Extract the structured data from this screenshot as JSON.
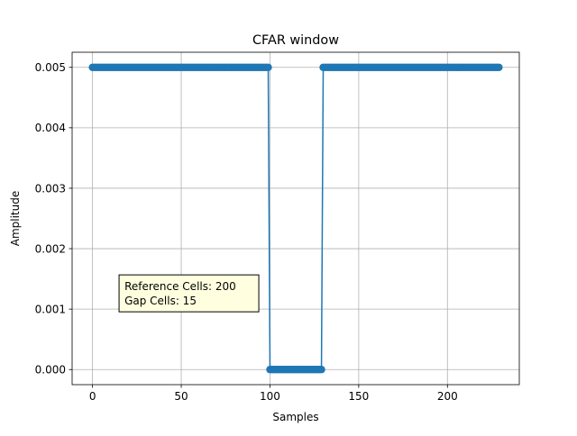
{
  "chart_data": {
    "type": "line",
    "title": "CFAR window",
    "xlabel": "Samples",
    "ylabel": "Amplitude",
    "xlim": [
      -11.5,
      240.5
    ],
    "ylim": [
      -0.00025,
      0.00525
    ],
    "xticks": [
      0,
      50,
      100,
      150,
      200
    ],
    "xtick_labels": [
      "0",
      "50",
      "100",
      "150",
      "200"
    ],
    "yticks": [
      0.0,
      0.001,
      0.002,
      0.003,
      0.004,
      0.005
    ],
    "ytick_labels": [
      "0.000",
      "0.001",
      "0.002",
      "0.003",
      "0.004",
      "0.005"
    ],
    "grid": true,
    "marker": "circle",
    "segments": [
      {
        "x_start": 0,
        "x_end": 99,
        "value": 0.005
      },
      {
        "x_start": 100,
        "x_end": 129,
        "value": 0.0
      },
      {
        "x_start": 130,
        "x_end": 229,
        "value": 0.005
      }
    ],
    "annotation": {
      "lines": [
        "Reference Cells: 200",
        "Gap Cells: 15"
      ],
      "x": 18,
      "y": 0.001
    },
    "colors": {
      "series": "#1f77b4",
      "annotation_bg": "#ffffe0",
      "grid": "#b0b0b0"
    }
  }
}
